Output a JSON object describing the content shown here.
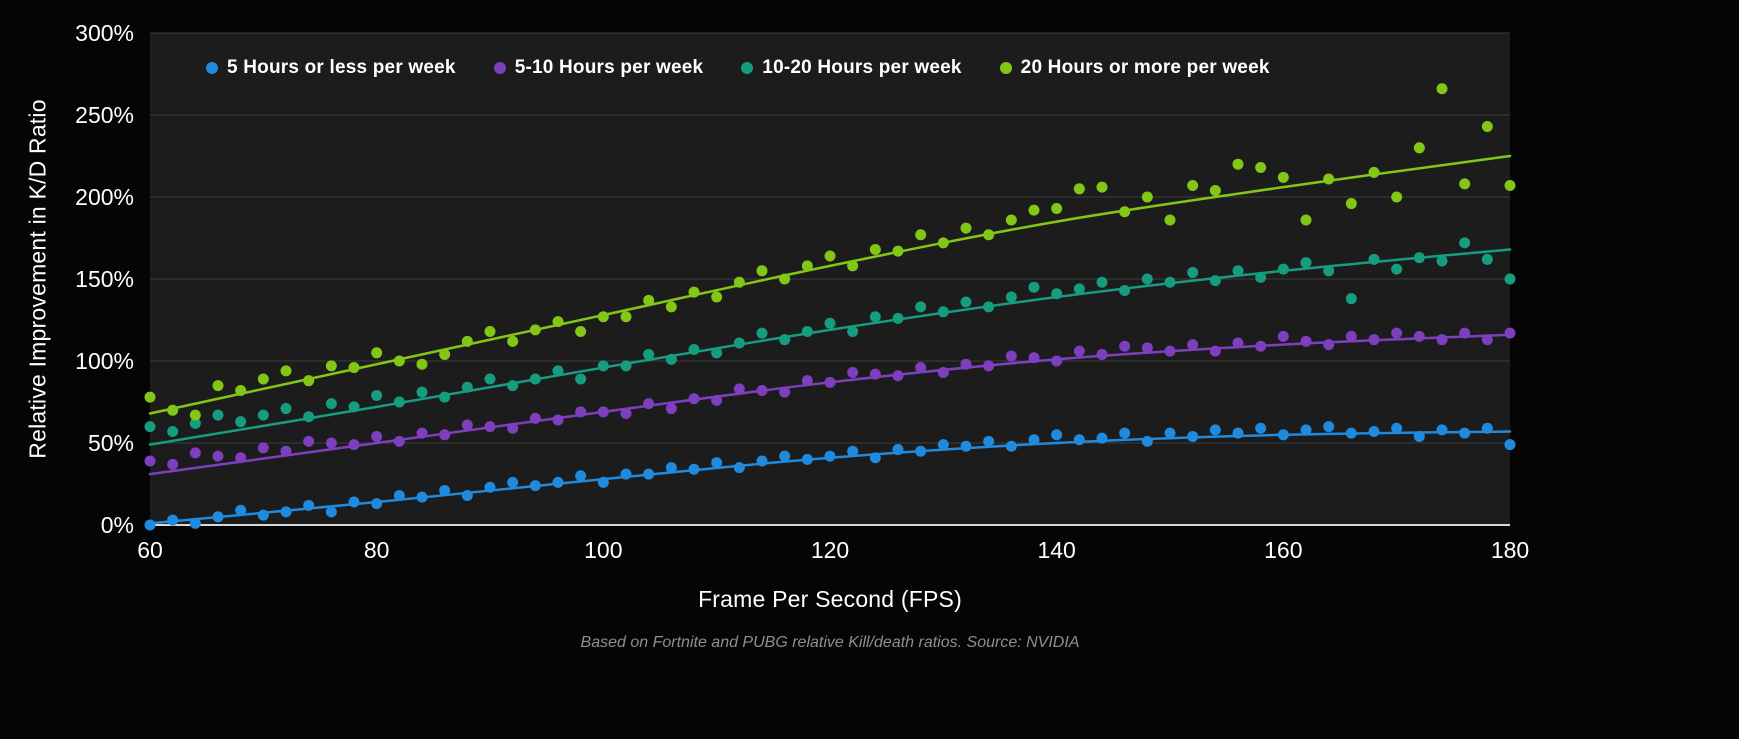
{
  "page": {
    "background": "#050505"
  },
  "chart_data": {
    "type": "scatter",
    "title": "",
    "xlabel": "Frame Per Second (FPS)",
    "ylabel": "Relative Improvement in K/D Ratio",
    "caption": "Based on Fortnite and PUBG relative Kill/death ratios. Source: NVIDIA",
    "xlim": [
      60,
      180
    ],
    "ylim": [
      0,
      300
    ],
    "x_ticks": [
      60,
      80,
      100,
      120,
      140,
      160,
      180
    ],
    "y_ticks": [
      0,
      50,
      100,
      150,
      200,
      250,
      300
    ],
    "y_tick_suffix": "%",
    "grid": "horizontal",
    "legend_position": "top-left-inside",
    "plot_bg": "#1c1c1c",
    "grid_color": "#3d3d3d",
    "axis_line_color": "#d9d9d9",
    "text_color": "#ffffff",
    "caption_color": "#8f8f8f",
    "x_start": 60,
    "x_step": 2,
    "series": [
      {
        "name": "5 Hours or less per week",
        "color": "#1f8ade",
        "scatter": [
          0,
          3,
          1,
          5,
          9,
          6,
          8,
          12,
          8,
          14,
          13,
          18,
          17,
          21,
          18,
          23,
          26,
          24,
          26,
          30,
          26,
          31,
          31,
          35,
          34,
          38,
          35,
          39,
          42,
          40,
          42,
          45,
          41,
          46,
          45,
          49,
          48,
          51,
          48,
          52,
          55,
          52,
          53,
          56,
          51,
          56,
          54,
          58,
          56,
          59,
          55,
          58,
          60,
          56,
          57,
          59,
          54,
          58,
          56,
          59,
          49
        ],
        "trend": [
          [
            60,
            1
          ],
          [
            80,
            14
          ],
          [
            100,
            28
          ],
          [
            120,
            41
          ],
          [
            140,
            50
          ],
          [
            160,
            55
          ],
          [
            180,
            57
          ]
        ]
      },
      {
        "name": "5-10 Hours per week",
        "color": "#7e3fbe",
        "scatter": [
          39,
          37,
          44,
          42,
          41,
          47,
          45,
          51,
          50,
          49,
          54,
          51,
          56,
          55,
          61,
          60,
          59,
          65,
          64,
          69,
          69,
          68,
          74,
          71,
          77,
          76,
          83,
          82,
          81,
          88,
          87,
          93,
          92,
          91,
          96,
          93,
          98,
          97,
          103,
          102,
          100,
          106,
          104,
          109,
          108,
          106,
          110,
          106,
          111,
          109,
          115,
          112,
          110,
          115,
          113,
          117,
          115,
          113,
          117,
          113,
          117
        ],
        "trend": [
          [
            60,
            31
          ],
          [
            80,
            50
          ],
          [
            100,
            69
          ],
          [
            120,
            87
          ],
          [
            140,
            101
          ],
          [
            160,
            110
          ],
          [
            180,
            116
          ]
        ]
      },
      {
        "name": "10-20 Hours per week",
        "color": "#169d80",
        "scatter": [
          60,
          57,
          62,
          67,
          63,
          67,
          71,
          66,
          74,
          72,
          79,
          75,
          81,
          78,
          84,
          89,
          85,
          89,
          94,
          89,
          97,
          97,
          104,
          101,
          107,
          105,
          111,
          117,
          113,
          118,
          123,
          118,
          127,
          126,
          133,
          130,
          136,
          133,
          139,
          145,
          141,
          144,
          148,
          143,
          150,
          148,
          154,
          149,
          155,
          151,
          156,
          160,
          155,
          138,
          162,
          156,
          163,
          161,
          172,
          162,
          150
        ],
        "trend": [
          [
            60,
            49
          ],
          [
            80,
            72
          ],
          [
            100,
            96
          ],
          [
            120,
            119
          ],
          [
            140,
            139
          ],
          [
            160,
            155
          ],
          [
            180,
            168
          ]
        ]
      },
      {
        "name": "20 Hours or more per week",
        "color": "#83c716",
        "scatter": [
          78,
          70,
          67,
          85,
          82,
          89,
          94,
          88,
          97,
          96,
          105,
          100,
          98,
          104,
          112,
          118,
          112,
          119,
          124,
          118,
          127,
          127,
          137,
          133,
          142,
          139,
          148,
          155,
          150,
          158,
          164,
          158,
          168,
          167,
          177,
          172,
          181,
          177,
          186,
          192,
          193,
          205,
          206,
          191,
          200,
          186,
          207,
          204,
          220,
          218,
          212,
          186,
          211,
          196,
          215,
          200,
          230,
          266,
          208,
          243,
          207
        ],
        "trend": [
          [
            60,
            68
          ],
          [
            80,
            98
          ],
          [
            100,
            128
          ],
          [
            120,
            158
          ],
          [
            140,
            185
          ],
          [
            160,
            206
          ],
          [
            180,
            225
          ]
        ]
      }
    ]
  }
}
